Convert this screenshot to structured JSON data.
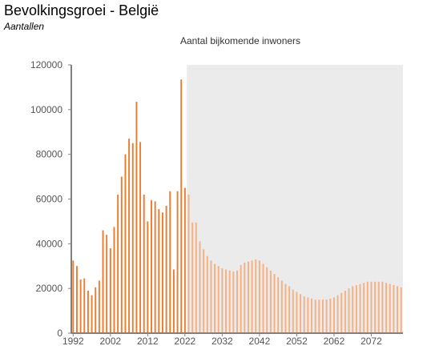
{
  "header": {
    "title": "Bevolkingsgroei - België",
    "subtitle": "Aantallen"
  },
  "chart_data": {
    "type": "bar",
    "title": "Aantal bijkomende inwoners",
    "xlabel": "",
    "ylabel": "",
    "ylim": [
      0,
      120000
    ],
    "yticks": [
      0,
      20000,
      40000,
      60000,
      80000,
      100000,
      120000
    ],
    "xticks": [
      1992,
      2002,
      2012,
      2022,
      2032,
      2042,
      2052,
      2062,
      2072
    ],
    "grid": false,
    "projection_start": 2023,
    "colors": {
      "observed": "#ED7D31",
      "projected": "#F4B183",
      "projection_band": "#EBEBEB"
    },
    "series": [
      {
        "x": [
          1992,
          1993,
          1994,
          1995,
          1996,
          1997,
          1998,
          1999,
          2000,
          2001,
          2002,
          2003,
          2004,
          2005,
          2006,
          2007,
          2008,
          2009,
          2010,
          2011,
          2012,
          2013,
          2014,
          2015,
          2016,
          2017,
          2018,
          2019,
          2020,
          2021,
          2022,
          2023,
          2024,
          2025,
          2026,
          2027,
          2028,
          2029,
          2030,
          2031,
          2032,
          2033,
          2034,
          2035,
          2036,
          2037,
          2038,
          2039,
          2040,
          2041,
          2042,
          2043,
          2044,
          2045,
          2046,
          2047,
          2048,
          2049,
          2050,
          2051,
          2052,
          2053,
          2054,
          2055,
          2056,
          2057,
          2058,
          2059,
          2060,
          2061,
          2062,
          2063,
          2064,
          2065,
          2066,
          2067,
          2068,
          2069,
          2070,
          2071,
          2072,
          2073,
          2074,
          2075,
          2076,
          2077,
          2078,
          2079,
          2080
        ],
        "values": [
          32500,
          30000,
          24000,
          24500,
          19000,
          17000,
          20500,
          23500,
          46000,
          44000,
          38000,
          47500,
          62000,
          70000,
          80000,
          87000,
          85000,
          103500,
          85500,
          62000,
          50000,
          59500,
          59000,
          55500,
          54000,
          57000,
          63500,
          28500,
          63500,
          113500,
          65000,
          62000,
          49500,
          49500,
          41000,
          37500,
          34500,
          32500,
          31000,
          30000,
          29000,
          28500,
          28000,
          27500,
          28000,
          30500,
          31500,
          32000,
          32500,
          33000,
          32500,
          31000,
          29500,
          28000,
          26500,
          25000,
          23500,
          22000,
          21000,
          19500,
          18500,
          17500,
          16500,
          16000,
          15500,
          15000,
          15000,
          15000,
          15000,
          15500,
          16000,
          17000,
          18000,
          19000,
          20000,
          21000,
          21500,
          22000,
          22500,
          23000,
          23000,
          23000,
          23000,
          23000,
          22500,
          22000,
          21500,
          21000,
          20500
        ]
      }
    ]
  }
}
